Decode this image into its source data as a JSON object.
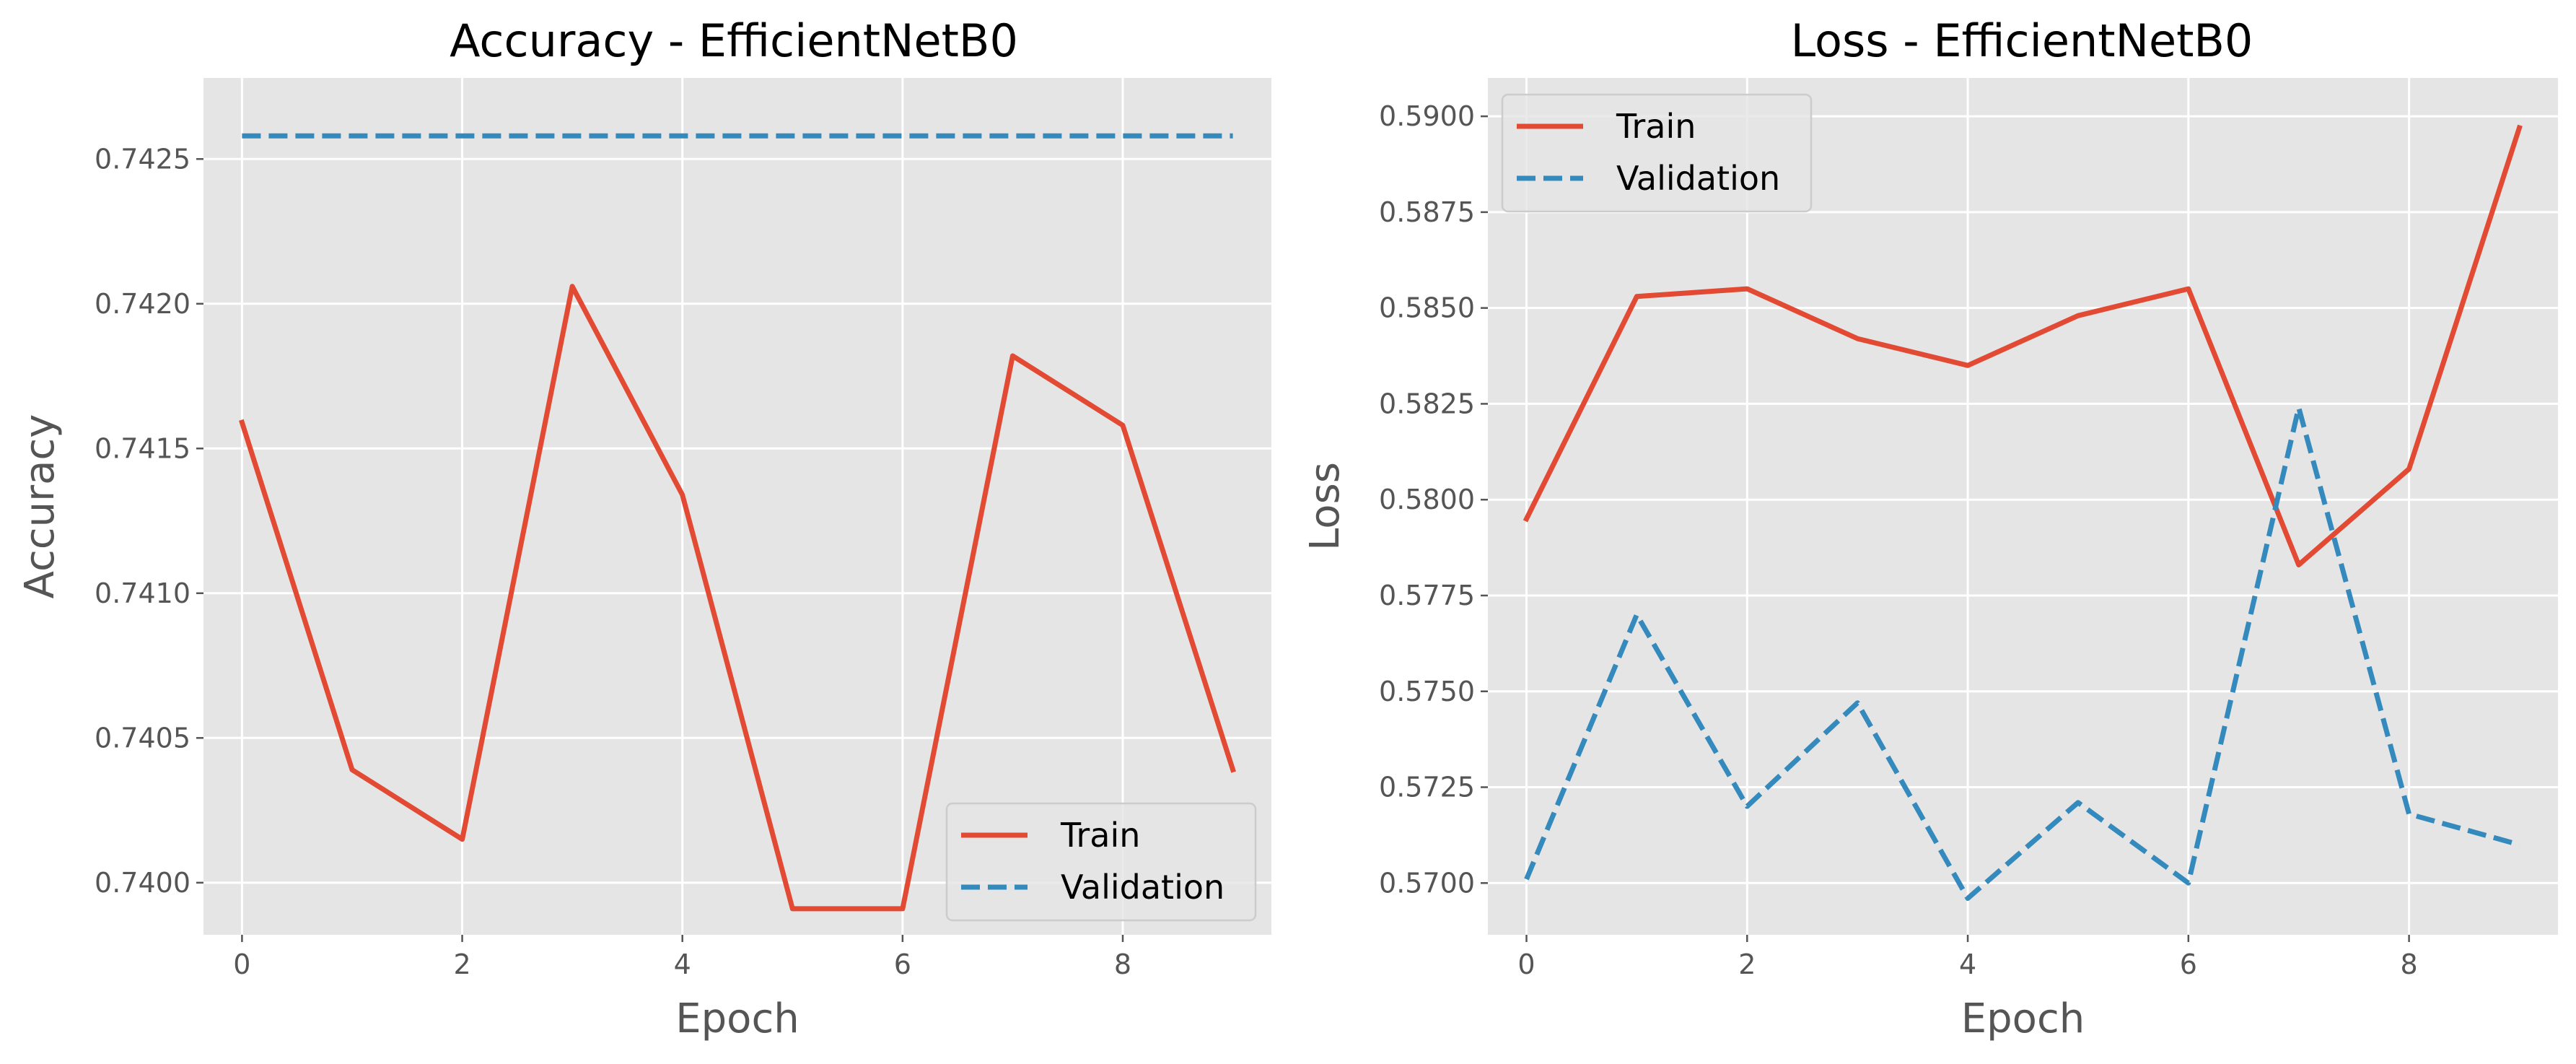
{
  "colors": {
    "train": "#E24A33",
    "validation": "#348ABD",
    "plot_background": "#E5E5E5",
    "grid": "#FFFFFF",
    "text": "#555555",
    "legend_border": "#CCCCCC"
  },
  "chart_data": [
    {
      "type": "line",
      "title": "Accuracy - EfficientNetB0",
      "xlabel": "Epoch",
      "ylabel": "Accuracy",
      "x": [
        0,
        1,
        2,
        3,
        4,
        5,
        6,
        7,
        8,
        9
      ],
      "xlim": [
        -0.35,
        9.35
      ],
      "ylim": [
        0.73982,
        0.74278
      ],
      "xticks": [
        0,
        2,
        4,
        6,
        8
      ],
      "xtick_labels": [
        "0",
        "2",
        "4",
        "6",
        "8"
      ],
      "yticks": [
        0.74,
        0.7405,
        0.741,
        0.7415,
        0.742,
        0.7425
      ],
      "ytick_labels": [
        "0.7400",
        "0.7405",
        "0.7410",
        "0.7415",
        "0.7420",
        "0.7425"
      ],
      "grid": true,
      "legend_position": "lower-right",
      "series": [
        {
          "name": "Train",
          "style": "solid",
          "color": "#E24A33",
          "values": [
            0.74159,
            0.74039,
            0.74015,
            0.74206,
            0.74134,
            0.73991,
            0.73991,
            0.74182,
            0.74158,
            0.74039
          ]
        },
        {
          "name": "Validation",
          "style": "dashed",
          "color": "#348ABD",
          "values": [
            0.74258,
            0.74258,
            0.74258,
            0.74258,
            0.74258,
            0.74258,
            0.74258,
            0.74258,
            0.74258,
            0.74258
          ]
        }
      ]
    },
    {
      "type": "line",
      "title": "Loss - EfficientNetB0",
      "xlabel": "Epoch",
      "ylabel": "Loss",
      "x": [
        0,
        1,
        2,
        3,
        4,
        5,
        6,
        7,
        8,
        9
      ],
      "xlim": [
        -0.35,
        9.35
      ],
      "ylim": [
        0.56865,
        0.591
      ],
      "xticks": [
        0,
        2,
        4,
        6,
        8
      ],
      "xtick_labels": [
        "0",
        "2",
        "4",
        "6",
        "8"
      ],
      "yticks": [
        0.57,
        0.5725,
        0.575,
        0.5775,
        0.58,
        0.5825,
        0.585,
        0.5875,
        0.59
      ],
      "ytick_labels": [
        "0.5700",
        "0.5725",
        "0.5750",
        "0.5775",
        "0.5800",
        "0.5825",
        "0.5850",
        "0.5875",
        "0.5900"
      ],
      "grid": true,
      "legend_position": "upper-left",
      "series": [
        {
          "name": "Train",
          "style": "solid",
          "color": "#E24A33",
          "values": [
            0.5795,
            0.5853,
            0.5855,
            0.5842,
            0.5835,
            0.5848,
            0.5855,
            0.5783,
            0.5808,
            0.5897
          ]
        },
        {
          "name": "Validation",
          "style": "dashed",
          "color": "#348ABD",
          "values": [
            0.5701,
            0.577,
            0.572,
            0.5747,
            0.5696,
            0.5721,
            0.57,
            0.5824,
            0.5718,
            0.571
          ]
        }
      ]
    }
  ]
}
